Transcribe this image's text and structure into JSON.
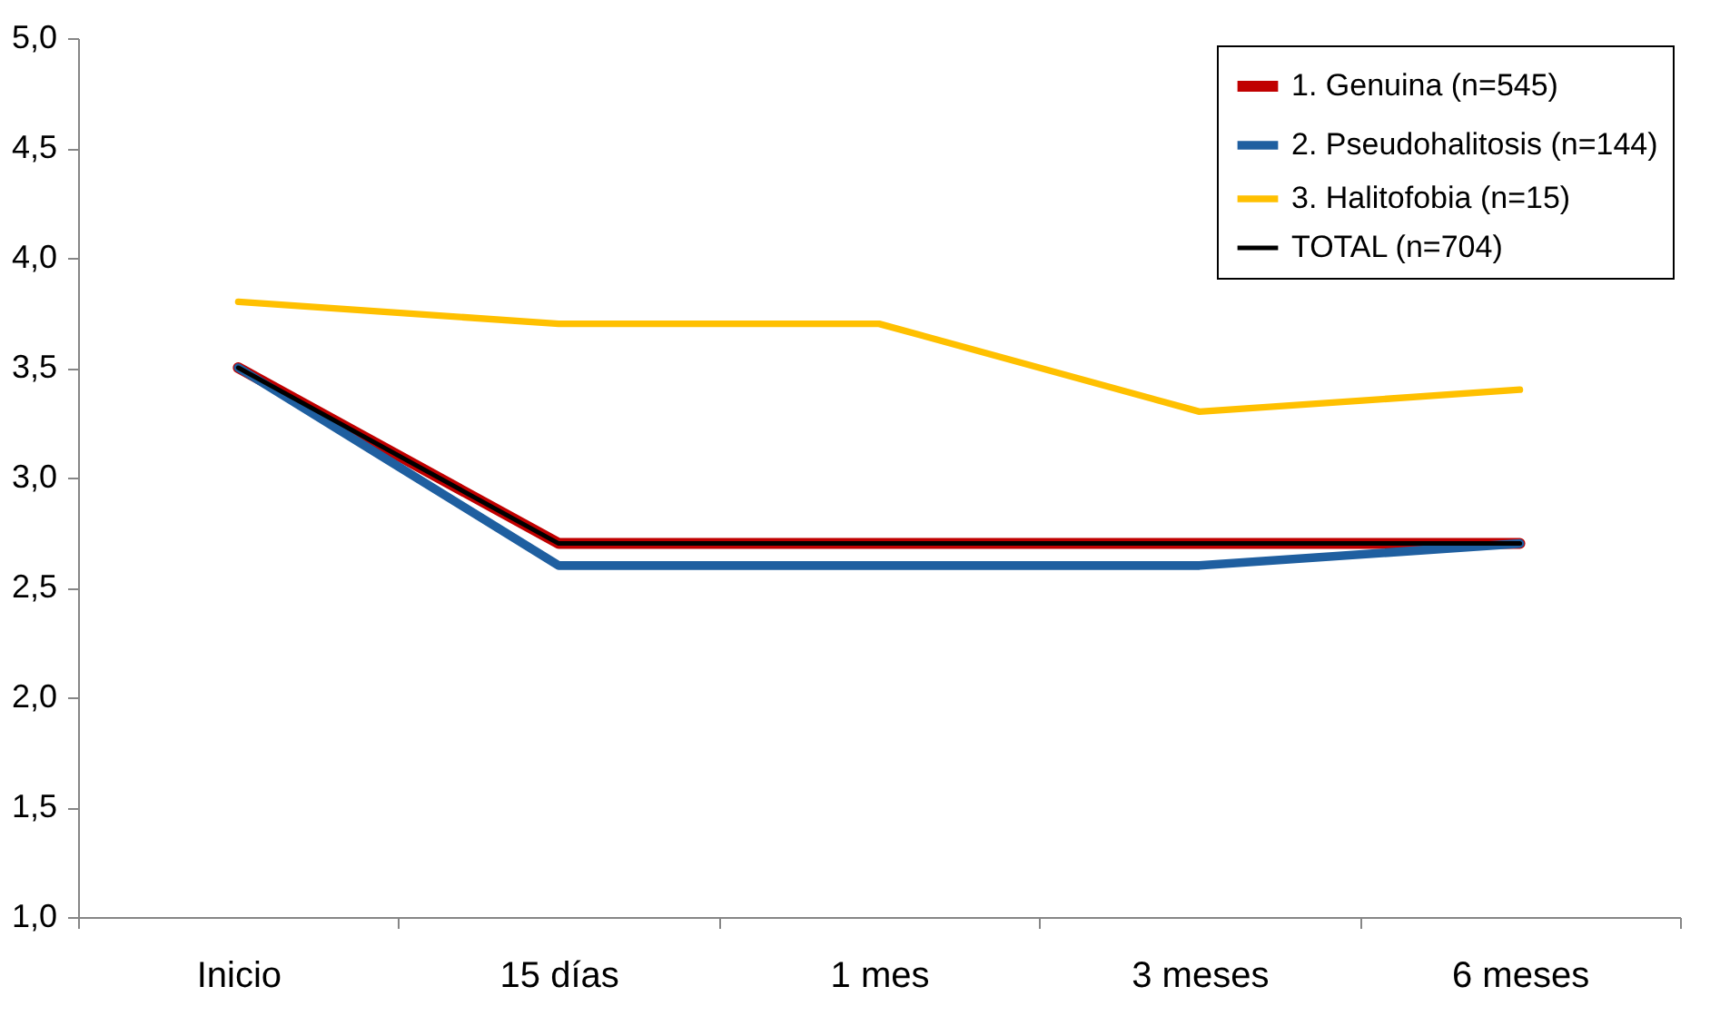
{
  "chart_data": {
    "type": "line",
    "categories": [
      "Inicio",
      "15 días",
      "1 mes",
      "3 meses",
      "6 meses"
    ],
    "series": [
      {
        "name": "1. Genuina (n=545)",
        "color": "#c00000",
        "values": [
          3.5,
          2.7,
          2.7,
          2.7,
          2.7
        ]
      },
      {
        "name": "2. Pseudohalitosis (n=144)",
        "color": "#1f5fa0",
        "values": [
          3.5,
          2.6,
          2.6,
          2.6,
          2.7
        ]
      },
      {
        "name": "3. Halitofobia (n=15)",
        "color": "#ffc000",
        "values": [
          3.8,
          3.7,
          3.7,
          3.3,
          3.4
        ]
      },
      {
        "name": "TOTAL (n=704)",
        "color": "#000000",
        "values": [
          3.5,
          2.7,
          2.7,
          2.7,
          2.7
        ]
      }
    ],
    "ylim": [
      1,
      5
    ],
    "yticks": [
      {
        "value": 1,
        "label": "1,0"
      },
      {
        "value": 1.5,
        "label": "1,5"
      },
      {
        "value": 2,
        "label": "2,0"
      },
      {
        "value": 2.5,
        "label": "2,5"
      },
      {
        "value": 3,
        "label": "3,0"
      },
      {
        "value": 3.5,
        "label": "3,5"
      },
      {
        "value": 4,
        "label": "4,0"
      },
      {
        "value": 4.5,
        "label": "4,5"
      },
      {
        "value": 5,
        "label": "5,0"
      }
    ],
    "grid": false,
    "legend": "top right",
    "marker": "none",
    "line_style": "solid"
  }
}
